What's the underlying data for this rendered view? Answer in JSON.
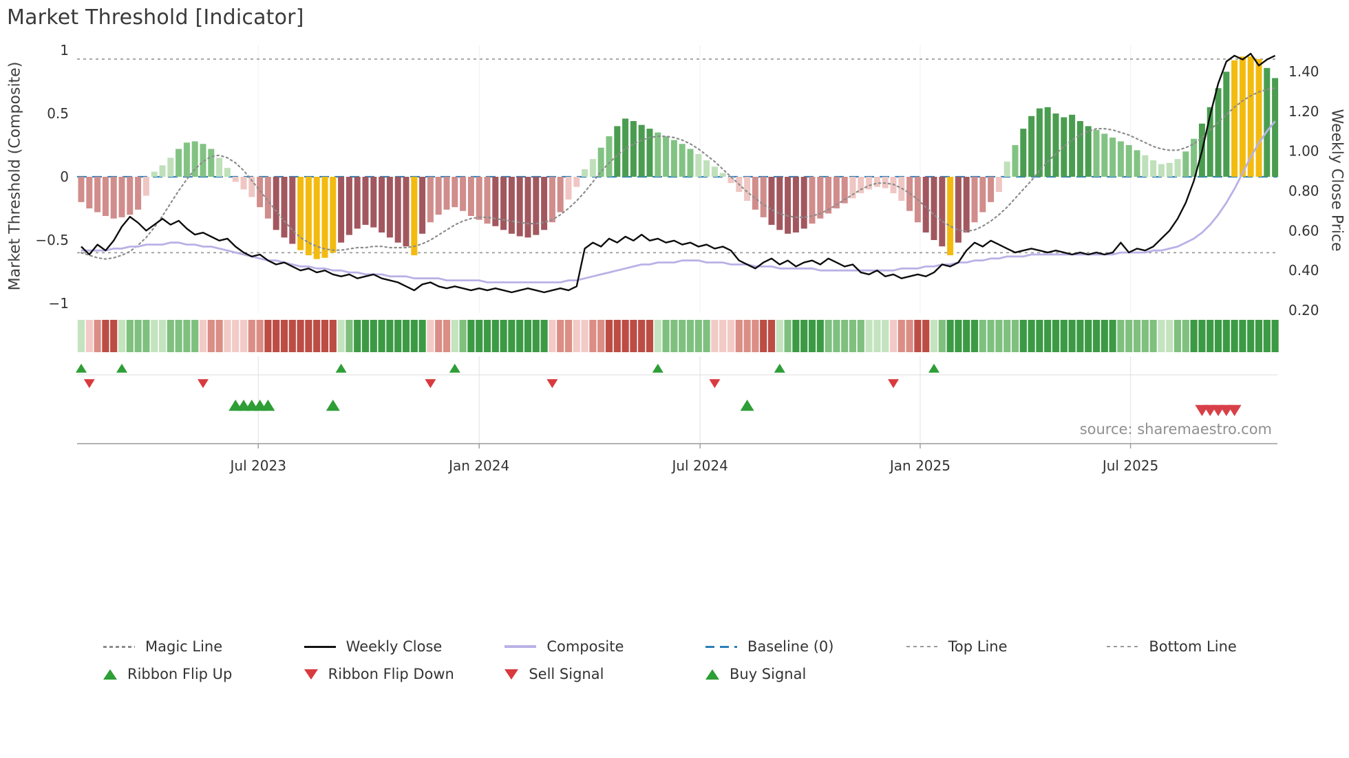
{
  "title": "Market Threshold [Indicator]",
  "source": "source: sharemaestro.com",
  "axes": {
    "left_label": "Market Threshold (Composite)",
    "right_label": "Weekly Close Price",
    "left_ticks": [
      {
        "v": 1,
        "label": "1"
      },
      {
        "v": 0.5,
        "label": "0.5"
      },
      {
        "v": 0,
        "label": "0"
      },
      {
        "v": -0.5,
        "label": "−0.5"
      },
      {
        "v": -1,
        "label": "−1"
      }
    ],
    "right_ticks": [
      {
        "v": 1.4,
        "label": "1.40"
      },
      {
        "v": 1.2,
        "label": "1.20"
      },
      {
        "v": 1.0,
        "label": "1.00"
      },
      {
        "v": 0.8,
        "label": "0.80"
      },
      {
        "v": 0.6,
        "label": "0.60"
      },
      {
        "v": 0.4,
        "label": "0.40"
      },
      {
        "v": 0.2,
        "label": "0.20"
      }
    ],
    "x_ticks": [
      {
        "week": 21.8,
        "label": "Jul 2023"
      },
      {
        "week": 49.0,
        "label": "Jan 2024"
      },
      {
        "week": 76.2,
        "label": "Jul 2024"
      },
      {
        "week": 103.3,
        "label": "Jan 2025"
      },
      {
        "week": 129.2,
        "label": "Jul 2025"
      }
    ]
  },
  "chart_data": {
    "type": "bar+line",
    "x_unit": "week",
    "left_ylim": [
      -1.08,
      1.06
    ],
    "right_ylim": [
      0.18,
      1.55
    ],
    "baseline": 0,
    "top_line": 0.93,
    "bottom_line": -0.6,
    "composite_bars": [
      -0.2,
      -0.25,
      -0.28,
      -0.31,
      -0.33,
      -0.32,
      -0.3,
      -0.26,
      -0.15,
      0.04,
      0.09,
      0.15,
      0.22,
      0.27,
      0.28,
      0.26,
      0.22,
      0.15,
      0.07,
      -0.04,
      -0.1,
      -0.16,
      -0.24,
      -0.33,
      -0.42,
      -0.48,
      -0.53,
      -0.58,
      -0.62,
      -0.65,
      -0.64,
      -0.6,
      -0.52,
      -0.46,
      -0.41,
      -0.38,
      -0.4,
      -0.44,
      -0.48,
      -0.52,
      -0.55,
      -0.62,
      -0.45,
      -0.36,
      -0.3,
      -0.26,
      -0.24,
      -0.27,
      -0.31,
      -0.34,
      -0.37,
      -0.39,
      -0.42,
      -0.45,
      -0.47,
      -0.48,
      -0.46,
      -0.42,
      -0.36,
      -0.28,
      -0.18,
      -0.08,
      0.06,
      0.14,
      0.23,
      0.32,
      0.4,
      0.46,
      0.44,
      0.41,
      0.38,
      0.35,
      0.32,
      0.29,
      0.26,
      0.22,
      0.18,
      0.13,
      0.08,
      0.03,
      -0.05,
      -0.12,
      -0.19,
      -0.26,
      -0.32,
      -0.38,
      -0.42,
      -0.45,
      -0.44,
      -0.41,
      -0.37,
      -0.33,
      -0.29,
      -0.25,
      -0.21,
      -0.17,
      -0.13,
      -0.1,
      -0.08,
      -0.09,
      -0.13,
      -0.19,
      -0.27,
      -0.36,
      -0.44,
      -0.5,
      -0.55,
      -0.62,
      -0.52,
      -0.44,
      -0.36,
      -0.28,
      -0.2,
      -0.12,
      0.12,
      0.25,
      0.38,
      0.48,
      0.54,
      0.55,
      0.5,
      0.47,
      0.49,
      0.44,
      0.4,
      0.37,
      0.34,
      0.31,
      0.28,
      0.25,
      0.21,
      0.17,
      0.13,
      0.1,
      0.11,
      0.14,
      0.2,
      0.3,
      0.42,
      0.55,
      0.7,
      0.83,
      0.92,
      0.95,
      0.95,
      0.93,
      0.86,
      0.78
    ],
    "yellow_weeks": [
      27,
      28,
      29,
      30,
      31,
      41,
      107,
      142,
      143,
      144,
      145
    ],
    "weekly_close": [
      0.52,
      0.48,
      0.53,
      0.5,
      0.55,
      0.62,
      0.67,
      0.64,
      0.6,
      0.63,
      0.66,
      0.63,
      0.65,
      0.61,
      0.58,
      0.59,
      0.57,
      0.55,
      0.56,
      0.52,
      0.49,
      0.47,
      0.48,
      0.45,
      0.43,
      0.44,
      0.42,
      0.4,
      0.41,
      0.39,
      0.4,
      0.38,
      0.37,
      0.38,
      0.36,
      0.37,
      0.38,
      0.36,
      0.35,
      0.34,
      0.32,
      0.3,
      0.33,
      0.34,
      0.32,
      0.31,
      0.32,
      0.31,
      0.3,
      0.31,
      0.3,
      0.31,
      0.3,
      0.29,
      0.3,
      0.31,
      0.3,
      0.29,
      0.3,
      0.31,
      0.3,
      0.32,
      0.51,
      0.54,
      0.52,
      0.56,
      0.54,
      0.57,
      0.55,
      0.58,
      0.55,
      0.56,
      0.54,
      0.55,
      0.53,
      0.54,
      0.52,
      0.53,
      0.51,
      0.52,
      0.5,
      0.45,
      0.43,
      0.41,
      0.44,
      0.46,
      0.43,
      0.45,
      0.42,
      0.44,
      0.45,
      0.43,
      0.46,
      0.44,
      0.42,
      0.43,
      0.39,
      0.38,
      0.4,
      0.37,
      0.38,
      0.36,
      0.37,
      0.38,
      0.37,
      0.39,
      0.43,
      0.42,
      0.44,
      0.5,
      0.54,
      0.52,
      0.55,
      0.53,
      0.51,
      0.49,
      0.5,
      0.51,
      0.5,
      0.49,
      0.5,
      0.49,
      0.48,
      0.49,
      0.48,
      0.49,
      0.48,
      0.49,
      0.54,
      0.49,
      0.51,
      0.5,
      0.52,
      0.56,
      0.6,
      0.66,
      0.74,
      0.85,
      1.0,
      1.18,
      1.34,
      1.45,
      1.48,
      1.46,
      1.49,
      1.43,
      1.46,
      1.48
    ],
    "composite_line": [
      0.5,
      0.5,
      0.5,
      0.5,
      0.51,
      0.51,
      0.52,
      0.52,
      0.53,
      0.53,
      0.53,
      0.54,
      0.54,
      0.53,
      0.53,
      0.52,
      0.52,
      0.51,
      0.5,
      0.49,
      0.48,
      0.47,
      0.46,
      0.45,
      0.45,
      0.44,
      0.43,
      0.42,
      0.42,
      0.41,
      0.41,
      0.4,
      0.4,
      0.39,
      0.39,
      0.38,
      0.38,
      0.38,
      0.37,
      0.37,
      0.37,
      0.36,
      0.36,
      0.36,
      0.36,
      0.35,
      0.35,
      0.35,
      0.35,
      0.35,
      0.34,
      0.34,
      0.34,
      0.34,
      0.34,
      0.34,
      0.34,
      0.34,
      0.34,
      0.34,
      0.35,
      0.35,
      0.36,
      0.37,
      0.38,
      0.39,
      0.4,
      0.41,
      0.42,
      0.43,
      0.43,
      0.44,
      0.44,
      0.44,
      0.45,
      0.45,
      0.45,
      0.44,
      0.44,
      0.44,
      0.43,
      0.43,
      0.43,
      0.42,
      0.42,
      0.42,
      0.41,
      0.41,
      0.41,
      0.41,
      0.41,
      0.4,
      0.4,
      0.4,
      0.4,
      0.4,
      0.4,
      0.4,
      0.4,
      0.4,
      0.4,
      0.41,
      0.41,
      0.41,
      0.42,
      0.42,
      0.43,
      0.43,
      0.44,
      0.44,
      0.45,
      0.45,
      0.46,
      0.46,
      0.47,
      0.47,
      0.47,
      0.48,
      0.48,
      0.48,
      0.48,
      0.48,
      0.48,
      0.48,
      0.48,
      0.48,
      0.48,
      0.48,
      0.49,
      0.49,
      0.49,
      0.49,
      0.5,
      0.5,
      0.51,
      0.52,
      0.54,
      0.56,
      0.59,
      0.63,
      0.68,
      0.74,
      0.81,
      0.89,
      0.97,
      1.04,
      1.1,
      1.15
    ],
    "magic_line": [
      -0.6,
      -0.62,
      -0.64,
      -0.65,
      -0.64,
      -0.62,
      -0.59,
      -0.54,
      -0.48,
      -0.4,
      -0.31,
      -0.21,
      -0.11,
      -0.02,
      0.06,
      0.12,
      0.16,
      0.17,
      0.15,
      0.11,
      0.05,
      -0.03,
      -0.11,
      -0.19,
      -0.27,
      -0.35,
      -0.42,
      -0.48,
      -0.52,
      -0.55,
      -0.57,
      -0.58,
      -0.58,
      -0.57,
      -0.56,
      -0.56,
      -0.55,
      -0.55,
      -0.56,
      -0.56,
      -0.56,
      -0.55,
      -0.53,
      -0.5,
      -0.46,
      -0.42,
      -0.38,
      -0.35,
      -0.33,
      -0.32,
      -0.32,
      -0.33,
      -0.34,
      -0.35,
      -0.36,
      -0.37,
      -0.37,
      -0.36,
      -0.34,
      -0.3,
      -0.25,
      -0.19,
      -0.12,
      -0.04,
      0.04,
      0.11,
      0.17,
      0.22,
      0.26,
      0.29,
      0.31,
      0.32,
      0.32,
      0.31,
      0.29,
      0.26,
      0.22,
      0.17,
      0.12,
      0.06,
      0.0,
      -0.06,
      -0.12,
      -0.17,
      -0.22,
      -0.26,
      -0.29,
      -0.31,
      -0.32,
      -0.32,
      -0.31,
      -0.29,
      -0.26,
      -0.22,
      -0.18,
      -0.14,
      -0.1,
      -0.07,
      -0.05,
      -0.05,
      -0.06,
      -0.09,
      -0.13,
      -0.18,
      -0.24,
      -0.3,
      -0.35,
      -0.39,
      -0.42,
      -0.43,
      -0.42,
      -0.39,
      -0.35,
      -0.3,
      -0.24,
      -0.17,
      -0.1,
      -0.03,
      0.05,
      0.12,
      0.18,
      0.24,
      0.29,
      0.33,
      0.36,
      0.38,
      0.38,
      0.37,
      0.35,
      0.33,
      0.3,
      0.27,
      0.24,
      0.22,
      0.21,
      0.21,
      0.23,
      0.26,
      0.31,
      0.37,
      0.43,
      0.49,
      0.55,
      0.6,
      0.64,
      0.67,
      0.69,
      0.7
    ],
    "ribbon_segments": [
      {
        "dir": "up",
        "start": 0,
        "end": 0
      },
      {
        "dir": "down",
        "start": 1,
        "end": 4
      },
      {
        "dir": "up",
        "start": 5,
        "end": 14
      },
      {
        "dir": "down",
        "start": 15,
        "end": 31
      },
      {
        "dir": "up",
        "start": 32,
        "end": 42
      },
      {
        "dir": "down",
        "start": 43,
        "end": 45
      },
      {
        "dir": "up",
        "start": 46,
        "end": 57
      },
      {
        "dir": "down",
        "start": 58,
        "end": 70
      },
      {
        "dir": "up",
        "start": 71,
        "end": 77
      },
      {
        "dir": "down",
        "start": 78,
        "end": 85
      },
      {
        "dir": "up",
        "start": 86,
        "end": 99
      },
      {
        "dir": "down",
        "start": 100,
        "end": 104
      },
      {
        "dir": "up",
        "start": 105,
        "end": 147
      }
    ],
    "signals": {
      "ribbon_flip_up_weeks": [
        0,
        5,
        32,
        46,
        71,
        86,
        105
      ],
      "ribbon_flip_down_weeks": [
        1,
        15,
        43,
        58,
        78,
        100
      ],
      "buy_weeks": [
        19,
        20,
        21,
        22,
        23,
        31,
        82
      ],
      "sell_weeks": [
        138,
        139,
        140,
        141,
        142
      ]
    }
  },
  "colors": {
    "bar_pos_dark": "#4a9d50",
    "bar_pos_mid": "#82c383",
    "bar_pos_light": "#bfe0ba",
    "bar_neg_dark": "#a2575f",
    "bar_neg_mid": "#d08d8c",
    "bar_neg_light": "#efc6c3",
    "extreme_bar": "#f3bb0f",
    "weekly_close": "#0d0d0d",
    "composite_line": "#b9b1e6",
    "magic_line": "#8c8c8c",
    "baseline": "#2d7fb8",
    "threshold": "#9a9a9a",
    "flip_up": "#2e9e36",
    "flip_down": "#d83a3e",
    "buy": "#2e9e36",
    "sell": "#d84048",
    "ribbon_green": [
      "#c4e3bf",
      "#7fc07f",
      "#3c9a45"
    ],
    "ribbon_red": [
      "#f2cac6",
      "#db8e85",
      "#bc4d45"
    ]
  },
  "legend": {
    "rows": [
      [
        {
          "label": "Magic Line",
          "swatch": "magic-line"
        },
        {
          "label": "Weekly Close",
          "swatch": "weekly-close"
        },
        {
          "label": "Composite",
          "swatch": "composite"
        },
        {
          "label": "Baseline (0)",
          "swatch": "baseline"
        },
        {
          "label": "Top Line",
          "swatch": "top-line"
        },
        {
          "label": "Bottom Line",
          "swatch": "bottom-line"
        }
      ],
      [
        {
          "label": "Ribbon Flip Up",
          "swatch": "flip-up"
        },
        {
          "label": "Ribbon Flip Down",
          "swatch": "flip-down"
        },
        {
          "label": "Sell Signal",
          "swatch": "sell"
        },
        {
          "label": "Buy Signal",
          "swatch": "buy"
        }
      ]
    ]
  }
}
